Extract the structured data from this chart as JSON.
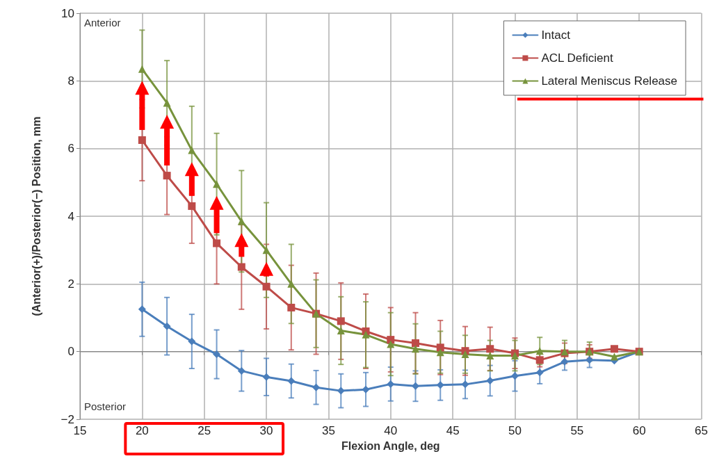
{
  "chart_data": {
    "type": "line",
    "xlabel": "Flexion Angle, deg",
    "ylabel": "(Anterior(+)/Posterior(−) Position, mm",
    "annotations": [
      "Anterior",
      "Posterior"
    ],
    "x": [
      20,
      22,
      24,
      26,
      28,
      30,
      32,
      34,
      36,
      38,
      40,
      42,
      44,
      46,
      48,
      50,
      52,
      54,
      56,
      58,
      60
    ],
    "series": [
      {
        "name": "Intact",
        "color": "#4a7ebb",
        "marker": "diamond",
        "values": [
          1.25,
          0.75,
          0.3,
          -0.08,
          -0.57,
          -0.75,
          -0.87,
          -1.06,
          -1.16,
          -1.12,
          -0.96,
          -1.02,
          -0.99,
          -0.97,
          -0.86,
          -0.72,
          -0.62,
          -0.3,
          -0.25,
          -0.27,
          0
        ],
        "errors": [
          0.8,
          0.85,
          0.8,
          0.72,
          0.6,
          0.55,
          0.5,
          0.5,
          0.5,
          0.5,
          0.5,
          0.45,
          0.45,
          0.42,
          0.45,
          0.45,
          0.33,
          0.25,
          0.22,
          null,
          null
        ]
      },
      {
        "name": "ACL Deficient",
        "color": "#be4b48",
        "marker": "square",
        "values": [
          6.25,
          5.2,
          4.3,
          3.2,
          2.5,
          1.92,
          1.3,
          1.12,
          0.9,
          0.6,
          0.35,
          0.25,
          0.12,
          0.02,
          0.08,
          -0.05,
          -0.25,
          -0.05,
          0,
          0.08,
          0
        ],
        "errors": [
          1.2,
          1.15,
          1.1,
          1.2,
          1.25,
          1.25,
          1.25,
          1.2,
          1.13,
          1.1,
          0.95,
          0.9,
          0.8,
          0.72,
          0.64,
          0.45,
          0.2,
          0.3,
          0.2,
          null,
          null
        ]
      },
      {
        "name": "Lateral Meniscus Release",
        "color": "#77933c",
        "marker": "triangle",
        "values": [
          8.35,
          7.35,
          5.95,
          4.95,
          3.85,
          3.0,
          2.0,
          1.12,
          0.62,
          0.5,
          0.22,
          0.08,
          -0.02,
          -0.08,
          -0.12,
          -0.12,
          0.02,
          0,
          0,
          -0.15,
          0
        ],
        "errors": [
          1.15,
          1.25,
          1.3,
          1.5,
          1.5,
          1.4,
          1.17,
          1.0,
          1.0,
          0.97,
          0.93,
          0.74,
          0.62,
          0.56,
          0.45,
          0.45,
          0.4,
          0.33,
          0.28,
          null,
          null
        ]
      }
    ],
    "xlim": [
      15,
      65
    ],
    "xticks": [
      15,
      20,
      25,
      30,
      35,
      40,
      45,
      50,
      55,
      60,
      65
    ],
    "ylim": [
      -2,
      10
    ],
    "yticks": [
      {
        "value": -2,
        "label": "−2"
      },
      0,
      2,
      4,
      6,
      8,
      10
    ],
    "grid": true,
    "legend": "top right",
    "line_style": "solid"
  }
}
